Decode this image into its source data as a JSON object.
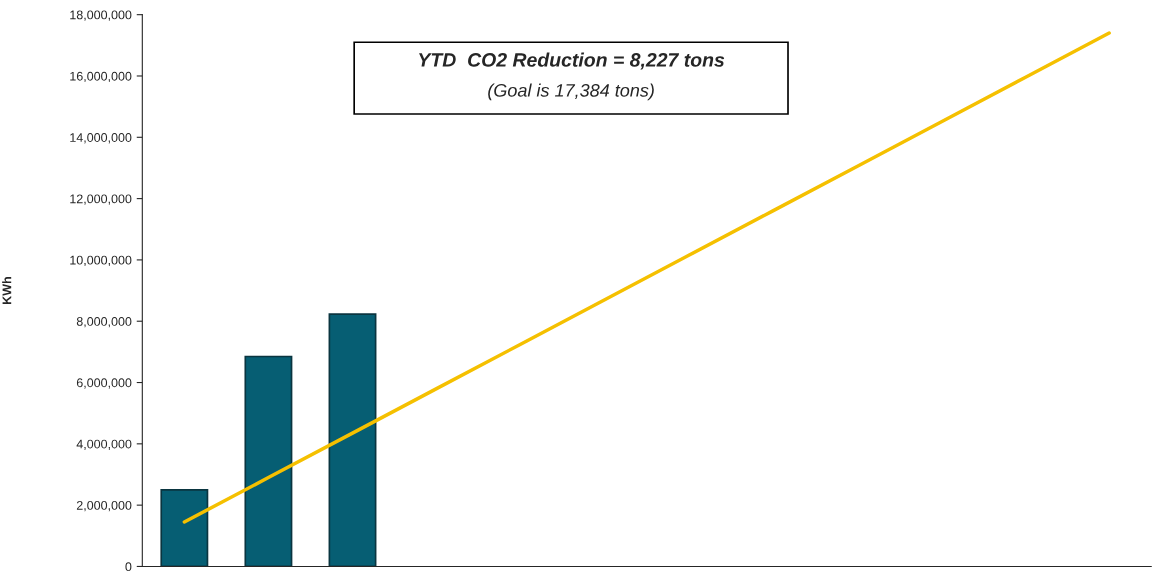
{
  "chart_data": {
    "type": "bar",
    "ylabel": "KWh",
    "categories": [
      null,
      null,
      null,
      null,
      null,
      null,
      null,
      null,
      null,
      null,
      null,
      null
    ],
    "series": [
      {
        "color": "#065e73",
        "values": [
          2500000,
          6850000,
          8230000,
          null,
          null,
          null,
          null,
          null,
          null,
          null,
          null,
          null
        ]
      },
      {
        "type": "line",
        "color": "#f5c000",
        "values": [
          1450000,
          2900000,
          4350000,
          5800000,
          7250000,
          8700000,
          10150000,
          11600000,
          13050000,
          14500000,
          15950000,
          17400000
        ]
      }
    ],
    "ylim": [
      0,
      18000000
    ],
    "yticks": [
      {
        "value": 0,
        "label": "0"
      },
      {
        "value": 2000000,
        "label": "2,000,000"
      },
      {
        "value": 4000000,
        "label": "4,000,000"
      },
      {
        "value": 6000000,
        "label": "6,000,000"
      },
      {
        "value": 8000000,
        "label": "8,000,000"
      },
      {
        "value": 10000000,
        "label": "10,000,000"
      },
      {
        "value": 12000000,
        "label": "12,000,000"
      },
      {
        "value": 14000000,
        "label": "14,000,000"
      },
      {
        "value": 16000000,
        "label": "16,000,000"
      },
      {
        "value": 18000000,
        "label": "18,000,000"
      }
    ],
    "grid": false,
    "legend": false,
    "annotations": [
      "YTD  CO2 Reduction = 8,227 tons",
      "(Goal is 17,384 tons)"
    ]
  }
}
